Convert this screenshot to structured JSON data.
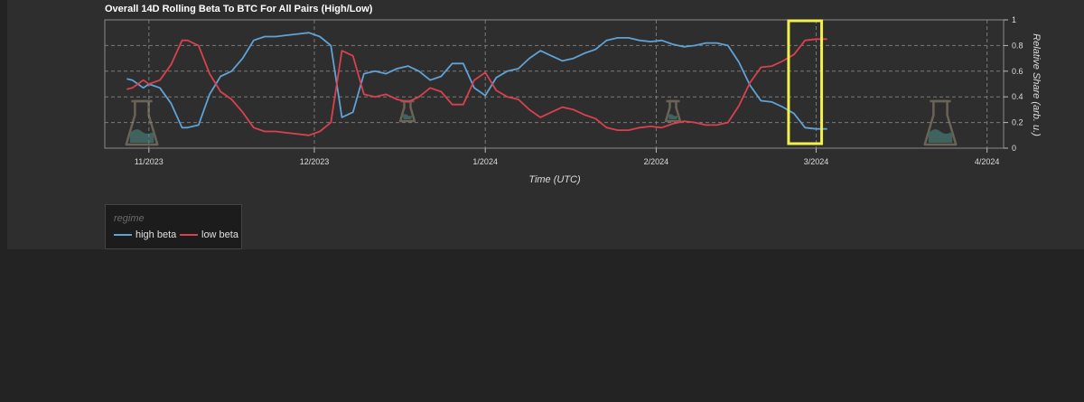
{
  "chart_data": {
    "type": "line",
    "title": "Overall 14D Rolling Beta To BTC For All Pairs (High/Low)",
    "xlabel": "Time (UTC)",
    "ylabel": "Relative Share (arb. u.)",
    "ylim": [
      0,
      1
    ],
    "yticks": [
      "0",
      "0.2",
      "0.4",
      "0.6",
      "0.8",
      "1"
    ],
    "xticks": [
      {
        "label": "11/2023",
        "date": "2023-11-01"
      },
      {
        "label": "12/2023",
        "date": "2023-12-01"
      },
      {
        "label": "1/2024",
        "date": "2024-01-01"
      },
      {
        "label": "2/2024",
        "date": "2024-02-01"
      },
      {
        "label": "3/2024",
        "date": "2024-03-01"
      },
      {
        "label": "4/2024",
        "date": "2024-04-01"
      }
    ],
    "grid": true,
    "legend": {
      "title": "regime",
      "placement": "bottom-left"
    },
    "highlight": {
      "from": "2024-02-25",
      "to": "2024-03-02",
      "color": "#f2f04a"
    },
    "x": [
      "2023-10-28",
      "2023-10-29",
      "2023-10-30",
      "2023-10-31",
      "2023-11-01",
      "2023-11-03",
      "2023-11-05",
      "2023-11-07",
      "2023-11-08",
      "2023-11-10",
      "2023-11-12",
      "2023-11-14",
      "2023-11-16",
      "2023-11-18",
      "2023-11-20",
      "2023-11-22",
      "2023-11-24",
      "2023-11-26",
      "2023-11-28",
      "2023-11-30",
      "2023-12-02",
      "2023-12-04",
      "2023-12-06",
      "2023-12-08",
      "2023-12-10",
      "2023-12-12",
      "2023-12-14",
      "2023-12-16",
      "2023-12-18",
      "2023-12-20",
      "2023-12-22",
      "2023-12-24",
      "2023-12-26",
      "2023-12-28",
      "2023-12-30",
      "2024-01-01",
      "2024-01-03",
      "2024-01-05",
      "2024-01-07",
      "2024-01-09",
      "2024-01-11",
      "2024-01-13",
      "2024-01-15",
      "2024-01-17",
      "2024-01-19",
      "2024-01-21",
      "2024-01-23",
      "2024-01-25",
      "2024-01-27",
      "2024-01-29",
      "2024-01-31",
      "2024-02-02",
      "2024-02-04",
      "2024-02-06",
      "2024-02-08",
      "2024-02-10",
      "2024-02-12",
      "2024-02-14",
      "2024-02-16",
      "2024-02-18",
      "2024-02-20",
      "2024-02-22",
      "2024-02-24",
      "2024-02-26",
      "2024-02-28",
      "2024-03-01",
      "2024-03-03"
    ],
    "series": [
      {
        "name": "high beta",
        "color": "#5fa2d5",
        "values": [
          0.54,
          0.53,
          0.5,
          0.47,
          0.5,
          0.47,
          0.35,
          0.16,
          0.16,
          0.18,
          0.42,
          0.56,
          0.6,
          0.7,
          0.84,
          0.87,
          0.87,
          0.88,
          0.89,
          0.9,
          0.87,
          0.8,
          0.24,
          0.28,
          0.58,
          0.6,
          0.58,
          0.62,
          0.64,
          0.6,
          0.53,
          0.56,
          0.66,
          0.66,
          0.47,
          0.41,
          0.55,
          0.6,
          0.62,
          0.7,
          0.76,
          0.72,
          0.68,
          0.7,
          0.74,
          0.77,
          0.84,
          0.86,
          0.86,
          0.84,
          0.83,
          0.84,
          0.81,
          0.79,
          0.8,
          0.82,
          0.82,
          0.8,
          0.67,
          0.49,
          0.37,
          0.36,
          0.32,
          0.27,
          0.16,
          0.15,
          0.15
        ]
      },
      {
        "name": "low beta",
        "color": "#d9414f",
        "values": [
          0.46,
          0.47,
          0.5,
          0.53,
          0.5,
          0.53,
          0.65,
          0.84,
          0.84,
          0.8,
          0.58,
          0.44,
          0.38,
          0.28,
          0.16,
          0.13,
          0.13,
          0.12,
          0.11,
          0.1,
          0.13,
          0.2,
          0.76,
          0.72,
          0.42,
          0.4,
          0.42,
          0.38,
          0.36,
          0.4,
          0.47,
          0.44,
          0.34,
          0.34,
          0.53,
          0.59,
          0.45,
          0.4,
          0.38,
          0.3,
          0.24,
          0.28,
          0.32,
          0.3,
          0.26,
          0.23,
          0.16,
          0.14,
          0.14,
          0.16,
          0.17,
          0.16,
          0.19,
          0.21,
          0.2,
          0.18,
          0.18,
          0.2,
          0.33,
          0.51,
          0.63,
          0.64,
          0.68,
          0.73,
          0.84,
          0.85,
          0.85
        ]
      }
    ]
  }
}
